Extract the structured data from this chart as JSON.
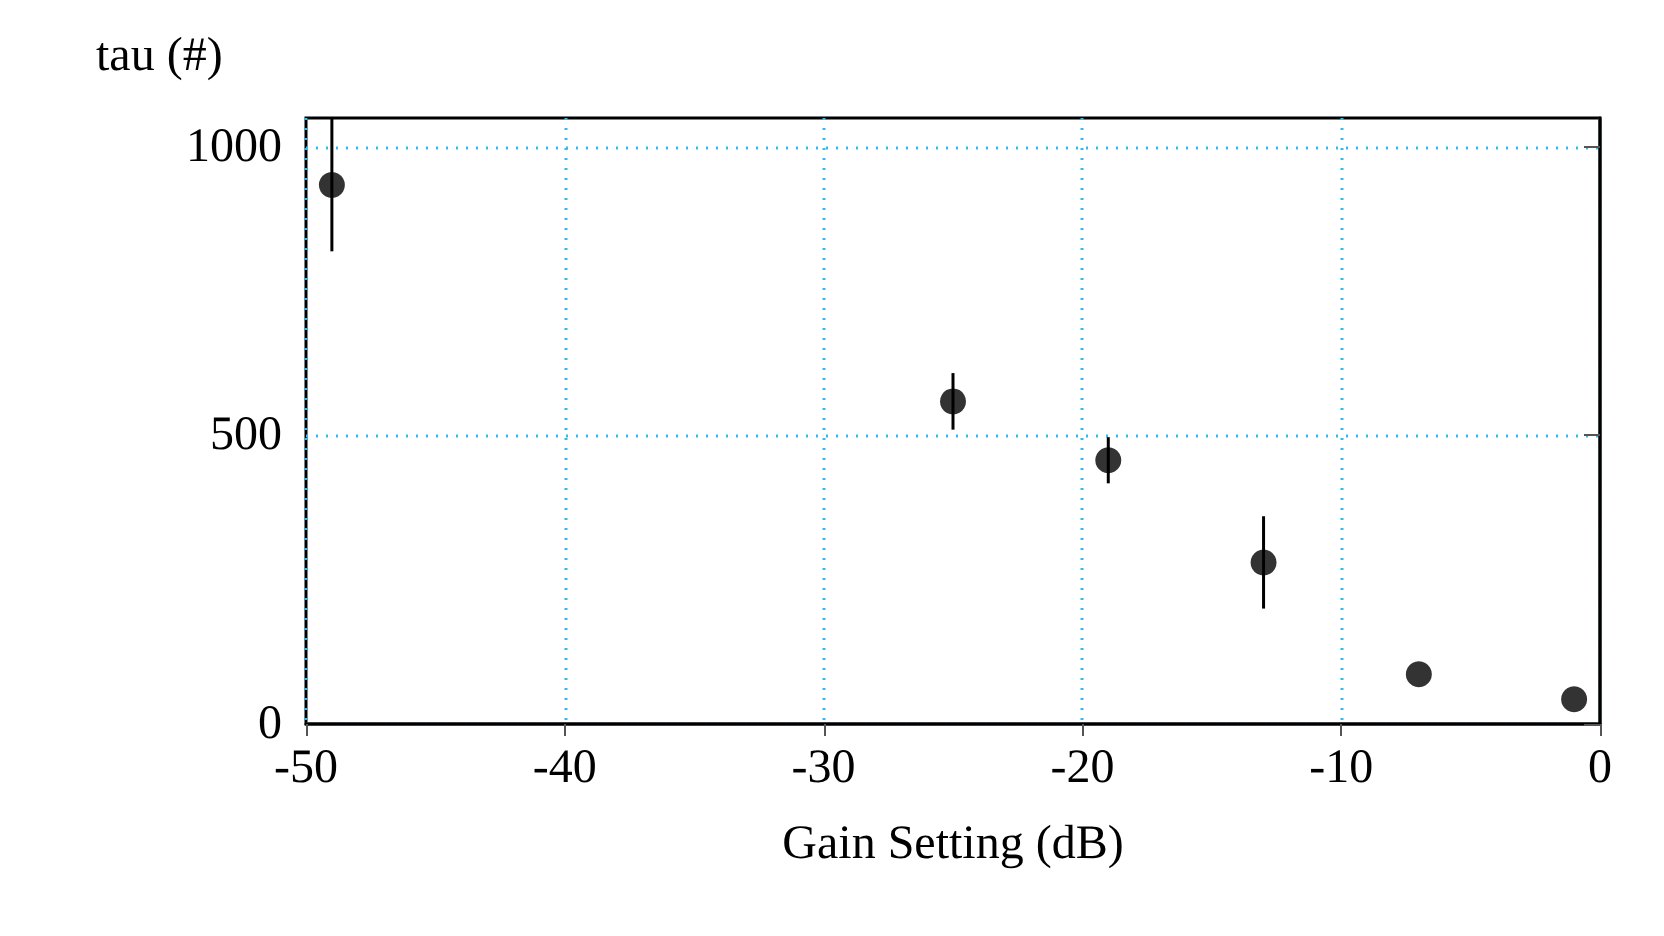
{
  "chart_data": {
    "type": "scatter",
    "xlabel": "Gain Setting (dB)",
    "ylabel": "tau (#)",
    "x": [
      -49,
      -25,
      -19,
      -13,
      -7,
      -1
    ],
    "values": [
      934,
      559,
      457,
      280,
      86,
      43
    ],
    "errors": [
      115,
      49,
      40,
      80,
      null,
      null
    ],
    "color": "#000000",
    "marker": "circle",
    "xlim": [
      -50,
      0
    ],
    "xticks": [
      -50,
      -40,
      -30,
      -20,
      -10,
      0
    ],
    "ylim": [
      0,
      1050
    ],
    "yticks": [
      0,
      500,
      1000
    ],
    "grid": true
  }
}
